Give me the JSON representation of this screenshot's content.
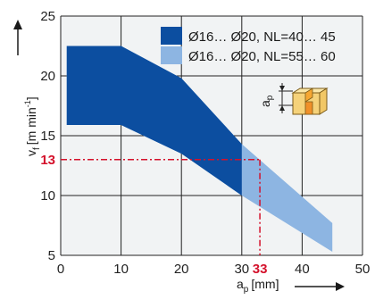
{
  "chart_data": {
    "type": "area",
    "xlabel": "a",
    "xlabel_sub": "p",
    "xlabel_unit": "[mm]",
    "ylabel": "v",
    "ylabel_sub": "f",
    "ylabel_unit_pre": "[m min",
    "ylabel_unit_sup": "-1",
    "ylabel_unit_post": "]",
    "xlim": [
      0,
      50
    ],
    "ylim": [
      5,
      25
    ],
    "x_ticks": [
      0,
      10,
      20,
      30,
      40,
      50
    ],
    "y_ticks": [
      5,
      10,
      15,
      20,
      25
    ],
    "grid": true,
    "legend_position": "top-right",
    "series": [
      {
        "name": "Ø16… Ø20, NL=55… 60",
        "color": "#8db5e2",
        "upper": [
          {
            "x": 1,
            "y": 22.5
          },
          {
            "x": 10,
            "y": 22.5
          },
          {
            "x": 20,
            "y": 19.8
          },
          {
            "x": 30,
            "y": 14.3
          },
          {
            "x": 45,
            "y": 7.7
          }
        ],
        "lower": [
          {
            "x": 1,
            "y": 15.9
          },
          {
            "x": 10,
            "y": 15.9
          },
          {
            "x": 20,
            "y": 13.5
          },
          {
            "x": 30,
            "y": 10.0
          },
          {
            "x": 45,
            "y": 5.3
          }
        ]
      },
      {
        "name": "Ø16… Ø20, NL=40… 45",
        "color": "#0c4ea0",
        "upper": [
          {
            "x": 1,
            "y": 22.5
          },
          {
            "x": 10,
            "y": 22.5
          },
          {
            "x": 20,
            "y": 19.8
          },
          {
            "x": 30,
            "y": 14.3
          }
        ],
        "lower": [
          {
            "x": 1,
            "y": 15.9
          },
          {
            "x": 10,
            "y": 15.9
          },
          {
            "x": 20,
            "y": 13.5
          },
          {
            "x": 30,
            "y": 10.0
          }
        ]
      }
    ],
    "highlight": {
      "x": 33,
      "y": 13,
      "x_label": "33",
      "y_label": "13",
      "color": "#d4112b"
    },
    "inset_label": "a",
    "inset_label_sub": "p"
  }
}
